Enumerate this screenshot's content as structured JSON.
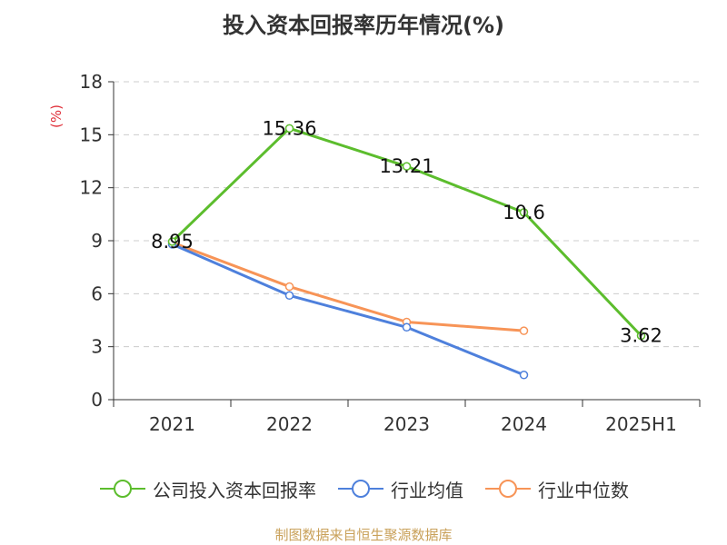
{
  "chart_data": {
    "type": "line",
    "title": "投入资本回报率历年情况(%)",
    "ylabel": "(%)",
    "categories": [
      "2021",
      "2022",
      "2023",
      "2024",
      "2025H1"
    ],
    "ylim": [
      0,
      18
    ],
    "yticks": [
      0,
      3,
      6,
      9,
      12,
      15,
      18
    ],
    "grid": true,
    "legend_position": "bottom",
    "series": [
      {
        "name": "公司投入资本回报率",
        "color": "#5cbd2d",
        "values": [
          8.95,
          15.36,
          13.21,
          10.6,
          3.62
        ],
        "labels": [
          "8.95",
          "15.36",
          "13.21",
          "10.6",
          "3.62"
        ]
      },
      {
        "name": "行业均值",
        "color": "#4e80dc",
        "values": [
          8.8,
          5.9,
          4.1,
          1.4,
          null
        ]
      },
      {
        "name": "行业中位数",
        "color": "#f79457",
        "values": [
          8.9,
          6.4,
          4.4,
          3.9,
          null
        ]
      }
    ]
  },
  "source": "制图数据来自恒生聚源数据库"
}
